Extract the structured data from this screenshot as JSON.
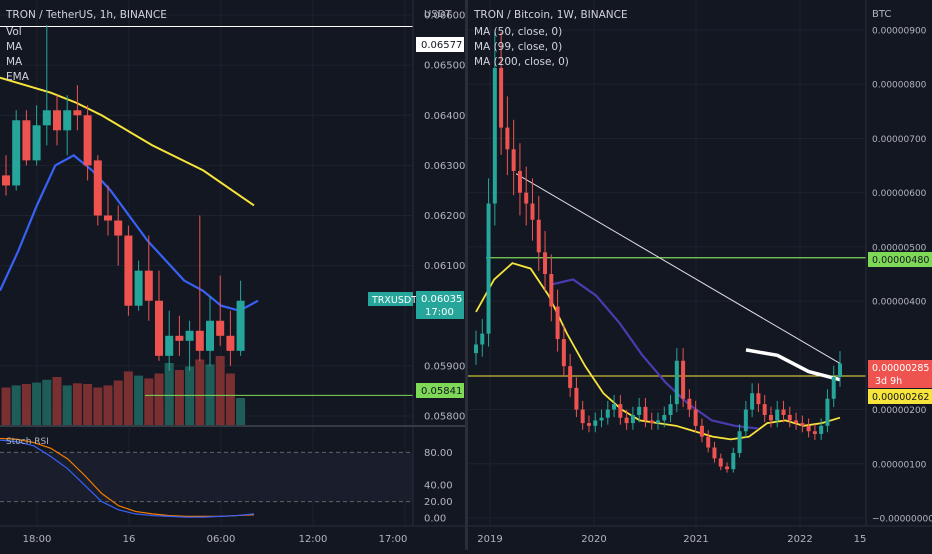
{
  "left": {
    "title": "TRON / TetherUS, 1h, BINANCE",
    "indicators": [
      "Vol",
      "MA",
      "MA",
      "EMA"
    ],
    "currency": "USDT",
    "y_ticks": [
      "0.06600",
      "0.06500",
      "0.06400",
      "0.06300",
      "0.06200",
      "0.06100",
      "0.05900",
      "0.05800"
    ],
    "x_ticks": [
      "18:00",
      "16",
      "06:00",
      "12:00",
      "17:00"
    ],
    "labels": {
      "high_line": "0.06577",
      "symbol": "TRXUSDT",
      "price": "0.06035",
      "countdown": "17:00",
      "support": "0.05841"
    },
    "stoch": {
      "title": "Stoch RSI",
      "ticks": [
        "80.00",
        "40.00",
        "20.00",
        "0.00"
      ]
    },
    "colors": {
      "up": "#26a69a",
      "down": "#ef5350",
      "ema": "#f7e43a",
      "ma": "#3861f6",
      "stoch_k": "#3861f6",
      "stoch_d": "#f57c00",
      "support": "#7ed957"
    }
  },
  "right": {
    "title": "TRON / Bitcoin, 1W, BINANCE",
    "indicators": [
      "MA (50, close, 0)",
      "MA (99, close, 0)",
      "MA (200, close, 0)"
    ],
    "currency": "BTC",
    "y_ticks": [
      "0.00000900",
      "0.00000800",
      "0.00000700",
      "0.00000600",
      "0.00000500",
      "0.00000400",
      "0.00000200",
      "0.00000100",
      "−0.00000000"
    ],
    "x_ticks": [
      "2019",
      "2020",
      "2021",
      "2022",
      "15"
    ],
    "labels": {
      "green_line": "0.00000480",
      "price": "0.00000285",
      "countdown": "3d 9h",
      "yellow_line": "0.00000262"
    },
    "colors": {
      "ma50": "#f7e43a",
      "ma99": "#4a3cb0",
      "green": "#7ed957",
      "yellow": "#f7e43a"
    }
  },
  "chart_data": [
    {
      "type": "candlestick",
      "title": "TRON / TetherUS, 1h, BINANCE",
      "ylabel": "USDT",
      "ylim": [
        0.0578,
        0.0663
      ],
      "candles": [
        {
          "o": 0.0628,
          "h": 0.0632,
          "l": 0.0624,
          "c": 0.0626
        },
        {
          "o": 0.0626,
          "h": 0.0641,
          "l": 0.0625,
          "c": 0.0639
        },
        {
          "o": 0.0639,
          "h": 0.0641,
          "l": 0.063,
          "c": 0.0631
        },
        {
          "o": 0.0631,
          "h": 0.0642,
          "l": 0.063,
          "c": 0.0638
        },
        {
          "o": 0.0638,
          "h": 0.0658,
          "l": 0.0634,
          "c": 0.0641
        },
        {
          "o": 0.0641,
          "h": 0.0644,
          "l": 0.0634,
          "c": 0.0637
        },
        {
          "o": 0.0637,
          "h": 0.0644,
          "l": 0.0632,
          "c": 0.0641
        },
        {
          "o": 0.0641,
          "h": 0.0646,
          "l": 0.0637,
          "c": 0.064
        },
        {
          "o": 0.064,
          "h": 0.0642,
          "l": 0.0627,
          "c": 0.063
        },
        {
          "o": 0.0631,
          "h": 0.0632,
          "l": 0.0618,
          "c": 0.062
        },
        {
          "o": 0.062,
          "h": 0.0626,
          "l": 0.0616,
          "c": 0.0619
        },
        {
          "o": 0.0619,
          "h": 0.0622,
          "l": 0.061,
          "c": 0.0616
        },
        {
          "o": 0.0616,
          "h": 0.0618,
          "l": 0.06,
          "c": 0.0602
        },
        {
          "o": 0.0602,
          "h": 0.0611,
          "l": 0.0601,
          "c": 0.0609
        },
        {
          "o": 0.0609,
          "h": 0.0616,
          "l": 0.0599,
          "c": 0.0603
        },
        {
          "o": 0.0603,
          "h": 0.0609,
          "l": 0.0591,
          "c": 0.0592
        },
        {
          "o": 0.0592,
          "h": 0.0601,
          "l": 0.0589,
          "c": 0.0596
        },
        {
          "o": 0.0596,
          "h": 0.06,
          "l": 0.0592,
          "c": 0.0595
        },
        {
          "o": 0.0595,
          "h": 0.0599,
          "l": 0.0589,
          "c": 0.0597
        },
        {
          "o": 0.0597,
          "h": 0.062,
          "l": 0.0591,
          "c": 0.0593
        },
        {
          "o": 0.0593,
          "h": 0.0604,
          "l": 0.059,
          "c": 0.0599
        },
        {
          "o": 0.0599,
          "h": 0.0608,
          "l": 0.0594,
          "c": 0.0596
        },
        {
          "o": 0.0596,
          "h": 0.0601,
          "l": 0.059,
          "c": 0.0593
        },
        {
          "o": 0.0593,
          "h": 0.0607,
          "l": 0.0592,
          "c": 0.0603
        }
      ],
      "volume": [
        0.55,
        0.58,
        0.6,
        0.62,
        0.66,
        0.7,
        0.58,
        0.61,
        0.6,
        0.55,
        0.58,
        0.65,
        0.78,
        0.72,
        0.68,
        0.75,
        0.9,
        0.8,
        0.85,
        0.95,
        0.88,
        1.0,
        0.75,
        0.4
      ],
      "ema": [
        0.06475,
        0.0646,
        0.06445,
        0.06425,
        0.064,
        0.0637,
        0.0634,
        0.06315,
        0.0629,
        0.06255,
        0.0622
      ],
      "ma": [
        0.0605,
        0.0613,
        0.0622,
        0.063,
        0.0632,
        0.0629,
        0.0625,
        0.062,
        0.0615,
        0.0611,
        0.0607,
        0.0605,
        0.0602,
        0.0601,
        0.0603
      ],
      "horizontal_lines": [
        0.06577,
        0.05841
      ],
      "stoch_k": [
        95,
        93,
        88,
        75,
        60,
        40,
        20,
        10,
        5,
        3,
        2,
        1,
        1,
        2,
        3,
        5
      ],
      "stoch_d": [
        97,
        96,
        92,
        85,
        72,
        52,
        30,
        15,
        8,
        5,
        3,
        2,
        2,
        2,
        3,
        4
      ]
    },
    {
      "type": "candlestick",
      "title": "TRON / Bitcoin, 1W, BINANCE",
      "ylabel": "BTC",
      "ylim": [
        0.0,
        9.5e-06
      ],
      "close_series": [
        3.2e-06,
        3.4e-06,
        5.8e-06,
        8.3e-06,
        7.2e-06,
        6.8e-06,
        6.4e-06,
        6e-06,
        5.8e-06,
        5.5e-06,
        4.9e-06,
        4.5e-06,
        3.9e-06,
        3.3e-06,
        2.8e-06,
        2.4e-06,
        2e-06,
        1.75e-06,
        1.7e-06,
        1.8e-06,
        1.85e-06,
        2e-06,
        2.1e-06,
        1.85e-06,
        1.75e-06,
        1.9e-06,
        2.05e-06,
        1.8e-06,
        1.75e-06,
        1.8e-06,
        1.9e-06,
        2.1e-06,
        2.9e-06,
        2.2e-06,
        2e-06,
        1.7e-06,
        1.5e-06,
        1.3e-06,
        1.1e-06,
        9.5e-07,
        9e-07,
        1.2e-06,
        1.6e-06,
        2e-06,
        2.3e-06,
        2.1e-06,
        1.9e-06,
        1.8e-06,
        2e-06,
        1.9e-06,
        1.8e-06,
        1.75e-06,
        1.7e-06,
        1.6e-06,
        1.55e-06,
        1.7e-06,
        2.2e-06,
        2.6e-06,
        2.85e-06
      ],
      "ma50": [
        3.8e-06,
        4.4e-06,
        4.7e-06,
        4.6e-06,
        4.1e-06,
        3.4e-06,
        2.8e-06,
        2.3e-06,
        2e-06,
        1.8e-06,
        1.75e-06,
        1.7e-06,
        1.6e-06,
        1.5e-06,
        1.45e-06,
        1.5e-06,
        1.75e-06,
        1.8e-06,
        1.7e-06,
        1.75e-06,
        1.85e-06
      ],
      "ma99": [
        4.3e-06,
        4.4e-06,
        4.1e-06,
        3.6e-06,
        3e-06,
        2.5e-06,
        2.1e-06,
        1.8e-06,
        1.7e-06,
        1.65e-06
      ],
      "ma200": [
        3.1e-06,
        3e-06,
        2.7e-06,
        2.55e-06
      ],
      "trend_line": [
        [
          6.35e-06
        ],
        [
          2.85e-06
        ]
      ],
      "horizontal_lines": [
        4.8e-06,
        2.62e-06
      ]
    }
  ]
}
